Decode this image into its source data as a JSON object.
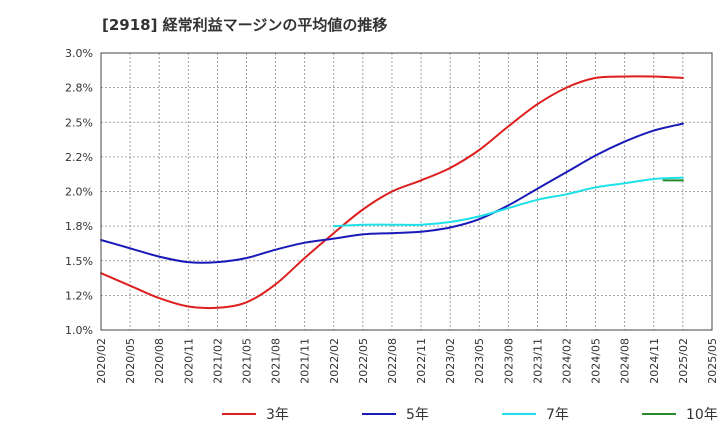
{
  "chart_data": {
    "type": "line",
    "title": "[2918]  経常利益マージンの平均値の推移",
    "xlabel": "",
    "ylabel": "",
    "ylim": [
      1.0,
      3.0
    ],
    "y_ticks": [
      "1.0%",
      "1.2%",
      "1.5%",
      "1.8%",
      "2.0%",
      "2.2%",
      "2.5%",
      "2.8%",
      "3.0%"
    ],
    "x_ticks": [
      "2020/02",
      "2020/05",
      "2020/08",
      "2020/11",
      "2021/02",
      "2021/05",
      "2021/08",
      "2021/11",
      "2022/02",
      "2022/05",
      "2022/08",
      "2022/11",
      "2023/02",
      "2023/05",
      "2023/08",
      "2023/11",
      "2024/02",
      "2024/05",
      "2024/08",
      "2024/11",
      "2025/02",
      "2025/05"
    ],
    "grid": true,
    "legend_position": "bottom",
    "series": [
      {
        "name": "3年",
        "color": "#dd1f1f",
        "points": [
          [
            "2020/02",
            1.41
          ],
          [
            "2020/05",
            1.32
          ],
          [
            "2020/08",
            1.23
          ],
          [
            "2020/11",
            1.17
          ],
          [
            "2021/02",
            1.16
          ],
          [
            "2021/05",
            1.2
          ],
          [
            "2021/08",
            1.33
          ],
          [
            "2021/11",
            1.52
          ],
          [
            "2022/02",
            1.7
          ],
          [
            "2022/05",
            1.87
          ],
          [
            "2022/08",
            2.0
          ],
          [
            "2022/11",
            2.08
          ],
          [
            "2023/02",
            2.17
          ],
          [
            "2023/05",
            2.3
          ],
          [
            "2023/08",
            2.47
          ],
          [
            "2023/11",
            2.63
          ],
          [
            "2024/02",
            2.75
          ],
          [
            "2024/05",
            2.82
          ],
          [
            "2024/08",
            2.83
          ],
          [
            "2024/11",
            2.83
          ],
          [
            "2025/02",
            2.82
          ]
        ]
      },
      {
        "name": "5年",
        "color": "#1a1ab8",
        "points": [
          [
            "2020/02",
            1.65
          ],
          [
            "2020/05",
            1.59
          ],
          [
            "2020/08",
            1.53
          ],
          [
            "2020/11",
            1.49
          ],
          [
            "2021/02",
            1.49
          ],
          [
            "2021/05",
            1.52
          ],
          [
            "2021/08",
            1.58
          ],
          [
            "2021/11",
            1.63
          ],
          [
            "2022/02",
            1.66
          ],
          [
            "2022/05",
            1.69
          ],
          [
            "2022/08",
            1.7
          ],
          [
            "2022/11",
            1.71
          ],
          [
            "2023/02",
            1.74
          ],
          [
            "2023/05",
            1.8
          ],
          [
            "2023/08",
            1.9
          ],
          [
            "2023/11",
            2.02
          ],
          [
            "2024/02",
            2.14
          ],
          [
            "2024/05",
            2.26
          ],
          [
            "2024/08",
            2.36
          ],
          [
            "2024/11",
            2.44
          ],
          [
            "2025/02",
            2.49
          ]
        ]
      },
      {
        "name": "7年",
        "color": "#1ee0e8",
        "points": [
          [
            "2022/02",
            1.75
          ],
          [
            "2022/05",
            1.76
          ],
          [
            "2022/08",
            1.76
          ],
          [
            "2022/11",
            1.76
          ],
          [
            "2023/02",
            1.78
          ],
          [
            "2023/05",
            1.82
          ],
          [
            "2023/08",
            1.88
          ],
          [
            "2023/11",
            1.94
          ],
          [
            "2024/02",
            1.98
          ],
          [
            "2024/05",
            2.03
          ],
          [
            "2024/08",
            2.06
          ],
          [
            "2024/11",
            2.09
          ],
          [
            "2025/02",
            2.1
          ]
        ]
      },
      {
        "name": "10年",
        "color": "#2a8a2a",
        "points": [
          [
            "2024/12",
            2.08
          ],
          [
            "2025/02",
            2.08
          ]
        ]
      }
    ]
  }
}
